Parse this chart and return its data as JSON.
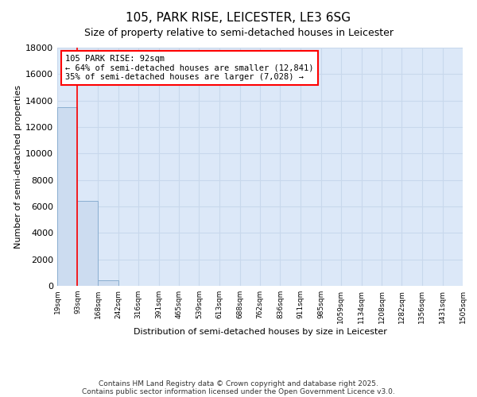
{
  "title": "105, PARK RISE, LEICESTER, LE3 6SG",
  "subtitle": "Size of property relative to semi-detached houses in Leicester",
  "xlabel": "Distribution of semi-detached houses by size in Leicester",
  "ylabel": "Number of semi-detached properties",
  "bar_edges": [
    19,
    93,
    168,
    242,
    316,
    391,
    465,
    539,
    613,
    688,
    762,
    836,
    911,
    985,
    1059,
    1134,
    1208,
    1282,
    1356,
    1431,
    1505
  ],
  "bar_heights": [
    13500,
    6400,
    400,
    0,
    0,
    0,
    0,
    0,
    0,
    0,
    0,
    0,
    0,
    0,
    0,
    0,
    0,
    0,
    0,
    0
  ],
  "bar_color": "#ccdcf0",
  "bar_edge_color": "#8aaed0",
  "property_line_x": 93,
  "property_line_color": "red",
  "annotation_title": "105 PARK RISE: 92sqm",
  "annotation_line2": "← 64% of semi-detached houses are smaller (12,841)",
  "annotation_line3": "35% of semi-detached houses are larger (7,028) →",
  "annotation_box_color": "white",
  "annotation_box_edge_color": "red",
  "ylim": [
    0,
    18000
  ],
  "yticks": [
    0,
    2000,
    4000,
    6000,
    8000,
    10000,
    12000,
    14000,
    16000,
    18000
  ],
  "xtick_labels": [
    "19sqm",
    "93sqm",
    "168sqm",
    "242sqm",
    "316sqm",
    "391sqm",
    "465sqm",
    "539sqm",
    "613sqm",
    "688sqm",
    "762sqm",
    "836sqm",
    "911sqm",
    "985sqm",
    "1059sqm",
    "1134sqm",
    "1208sqm",
    "1282sqm",
    "1356sqm",
    "1431sqm",
    "1505sqm"
  ],
  "grid_color": "#c8d8ec",
  "bg_color": "#dce8f8",
  "footnote1": "Contains HM Land Registry data © Crown copyright and database right 2025.",
  "footnote2": "Contains public sector information licensed under the Open Government Licence v3.0."
}
